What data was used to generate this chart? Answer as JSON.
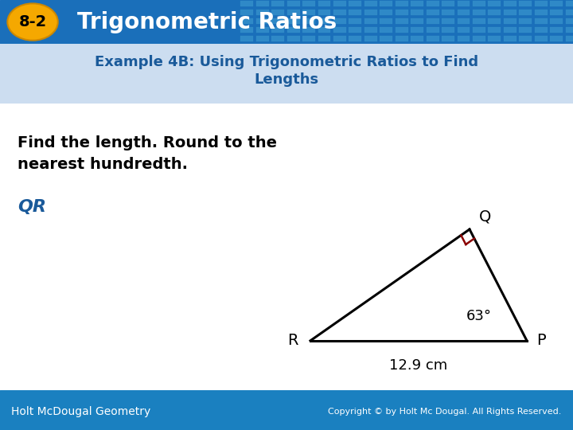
{
  "title_badge": "8-2",
  "title_text": "Trigonometric Ratios",
  "example_title": "Example 4B: Using Trigonometric Ratios to Find\nLengths",
  "instruction": "Find the length. Round to the\nnearest hundredth.",
  "variable": "QR",
  "header_bg": "#1a6fba",
  "badge_color": "#f5a800",
  "footer_bg": "#1a80c0",
  "body_bg": "#ffffff",
  "example_bg": "#ccddf0",
  "example_text_color": "#1a5a9a",
  "instruction_color": "#000000",
  "variable_color": "#1a5a9a",
  "triangle": {
    "angle_label": "63°",
    "side_label": "12.9 cm"
  },
  "footer_left": "Holt McDougal Geometry",
  "footer_right": "Copyright © by Holt Mc Dougal. All Rights Reserved."
}
